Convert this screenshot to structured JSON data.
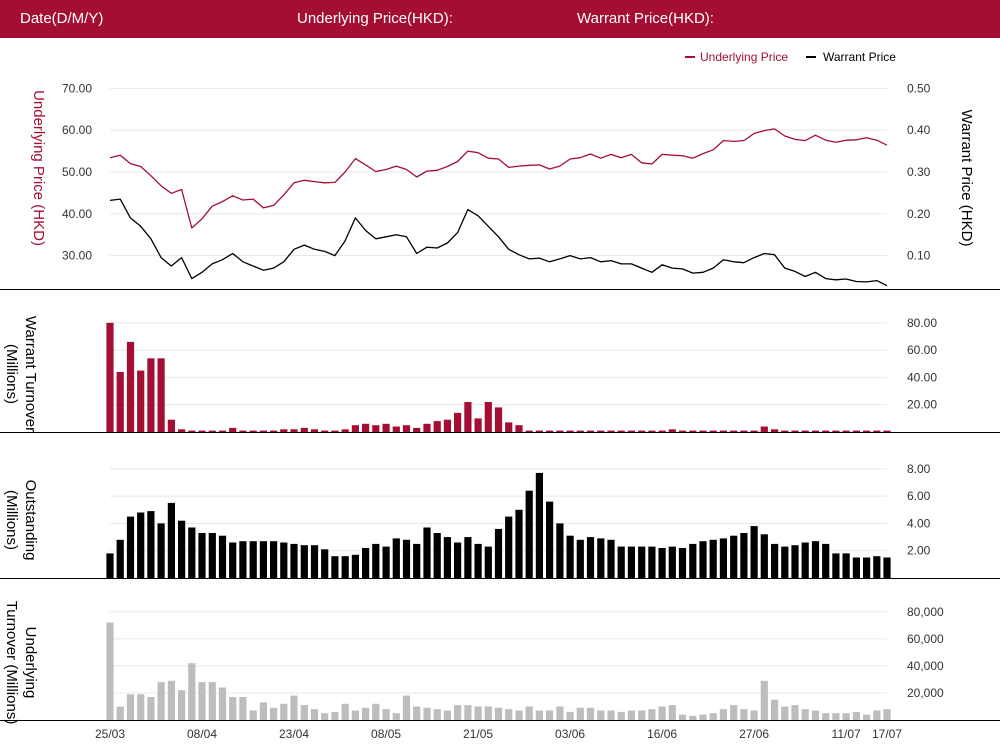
{
  "header": {
    "date_label": "Date(D/M/Y)",
    "underlying_label": "Underlying Price(HKD):",
    "warrant_label": "Warrant Price(HKD):"
  },
  "colors": {
    "header_bg": "#a50e33",
    "underlying": "#a50e33",
    "warrant": "#000000",
    "underlying_turnover": "#bdbdbd",
    "grid": "#e8e8e8"
  },
  "chart_data": [
    {
      "type": "line",
      "id": "price",
      "legend_position": "top-right",
      "y_left": {
        "label": "Underlying Price (HKD)",
        "range": [
          22,
          72
        ],
        "ticks": [
          "70.00",
          "60.00",
          "50.00",
          "40.00",
          "30.00"
        ],
        "tick_values": [
          70,
          60,
          50,
          40,
          30
        ]
      },
      "y_right": {
        "label": "Warrant Price (HKD)",
        "range": [
          0.02,
          0.52
        ],
        "ticks": [
          "0.50",
          "0.40",
          "0.30",
          "0.20",
          "0.10"
        ],
        "tick_values": [
          0.5,
          0.4,
          0.3,
          0.2,
          0.1
        ]
      },
      "grid": true,
      "series": [
        {
          "name": "Underlying Price",
          "axis": "left",
          "values": [
            53.4,
            54.0,
            52.0,
            51.3,
            49.1,
            46.7,
            44.9,
            45.8,
            36.6,
            38.8,
            41.8,
            42.9,
            44.3,
            43.3,
            43.5,
            41.4,
            42.0,
            44.5,
            47.4,
            48.0,
            47.7,
            47.4,
            47.5,
            50.0,
            53.2,
            51.7,
            50.1,
            50.6,
            51.4,
            50.6,
            48.8,
            50.2,
            50.4,
            51.3,
            52.5,
            55.0,
            54.6,
            53.3,
            53.1,
            51.1,
            51.4,
            51.6,
            51.7,
            50.7,
            51.4,
            53.1,
            53.4,
            54.3,
            53.3,
            54.2,
            53.4,
            54.2,
            52.2,
            51.9,
            54.2,
            54.0,
            53.9,
            53.3,
            54.4,
            55.3,
            57.5,
            57.3,
            57.5,
            59.2,
            59.9,
            60.3,
            58.6,
            57.8,
            57.5,
            58.8,
            57.6,
            57.1,
            57.6,
            57.7,
            58.2,
            57.6,
            56.4
          ]
        },
        {
          "name": "Warrant Price",
          "axis": "right",
          "values": [
            0.232,
            0.235,
            0.19,
            0.17,
            0.14,
            0.095,
            0.075,
            0.095,
            0.045,
            0.06,
            0.08,
            0.09,
            0.105,
            0.085,
            0.075,
            0.065,
            0.07,
            0.085,
            0.115,
            0.125,
            0.115,
            0.11,
            0.1,
            0.135,
            0.19,
            0.16,
            0.14,
            0.145,
            0.15,
            0.145,
            0.105,
            0.12,
            0.118,
            0.13,
            0.155,
            0.21,
            0.195,
            0.17,
            0.145,
            0.115,
            0.102,
            0.092,
            0.094,
            0.085,
            0.092,
            0.1,
            0.092,
            0.095,
            0.085,
            0.088,
            0.08,
            0.08,
            0.07,
            0.06,
            0.078,
            0.07,
            0.068,
            0.058,
            0.06,
            0.07,
            0.09,
            0.085,
            0.083,
            0.095,
            0.105,
            0.102,
            0.07,
            0.062,
            0.05,
            0.06,
            0.045,
            0.042,
            0.044,
            0.038,
            0.037,
            0.04,
            0.028
          ]
        }
      ]
    },
    {
      "type": "bar",
      "id": "warrant_turnover",
      "y_label_lines": [
        "Warrant  Turnover",
        "(Millions)"
      ],
      "y_range": [
        0,
        85
      ],
      "ticks": [
        "80.00",
        "60.00",
        "40.00",
        "20.00"
      ],
      "tick_values": [
        80,
        60,
        40,
        20
      ],
      "values": [
        80,
        44,
        66,
        45,
        54,
        54,
        9,
        2,
        1,
        1,
        1,
        1,
        3,
        1,
        1,
        1,
        1,
        2,
        2,
        3,
        2,
        1,
        1,
        2,
        5,
        6,
        5,
        6,
        4,
        5,
        3,
        6,
        8,
        9,
        14,
        22,
        10,
        22,
        18,
        7,
        5,
        1,
        1,
        1,
        1,
        1,
        1,
        1,
        1,
        1,
        1,
        1,
        1,
        1,
        1,
        2,
        1,
        1,
        1,
        1,
        1,
        1,
        1,
        1,
        4,
        2,
        1,
        1,
        1,
        1,
        1,
        1,
        1,
        1,
        1,
        1,
        1
      ]
    },
    {
      "type": "bar",
      "id": "outstanding",
      "y_label_lines": [
        "Outstanding",
        "(Millions)"
      ],
      "y_range": [
        0,
        8.5
      ],
      "ticks": [
        "8.00",
        "6.00",
        "4.00",
        "2.00"
      ],
      "tick_values": [
        8,
        6,
        4,
        2
      ],
      "values": [
        1.8,
        2.8,
        4.5,
        4.8,
        4.9,
        4.0,
        5.5,
        4.2,
        3.7,
        3.3,
        3.3,
        3.1,
        2.6,
        2.7,
        2.7,
        2.7,
        2.7,
        2.6,
        2.5,
        2.4,
        2.4,
        2.1,
        1.6,
        1.6,
        1.7,
        2.2,
        2.5,
        2.3,
        2.9,
        2.8,
        2.5,
        3.7,
        3.3,
        3.0,
        2.6,
        3.0,
        2.5,
        2.3,
        3.6,
        4.5,
        5.0,
        6.4,
        7.7,
        5.6,
        4.0,
        3.1,
        2.8,
        3.0,
        2.9,
        2.8,
        2.3,
        2.3,
        2.3,
        2.3,
        2.2,
        2.3,
        2.2,
        2.5,
        2.7,
        2.8,
        2.9,
        3.1,
        3.3,
        3.8,
        3.2,
        2.5,
        2.3,
        2.4,
        2.6,
        2.7,
        2.5,
        1.8,
        1.8,
        1.5,
        1.5,
        1.6,
        1.5
      ]
    },
    {
      "type": "bar",
      "id": "underlying_turnover",
      "y_label_lines": [
        "Underlying",
        "Turnover (Millions)"
      ],
      "y_range": [
        0,
        85000
      ],
      "ticks": [
        "80,000",
        "60,000",
        "40,000",
        "20,000"
      ],
      "tick_values": [
        80000,
        60000,
        40000,
        20000
      ],
      "x_ticks": [
        {
          "label": "25/03",
          "index": 0
        },
        {
          "label": "08/04",
          "index": 9
        },
        {
          "label": "23/04",
          "index": 18
        },
        {
          "label": "08/05",
          "index": 27
        },
        {
          "label": "21/05",
          "index": 36
        },
        {
          "label": "03/06",
          "index": 45
        },
        {
          "label": "16/06",
          "index": 54
        },
        {
          "label": "27/06",
          "index": 63
        },
        {
          "label": "11/07",
          "index": 72
        },
        {
          "label": "17/07",
          "index": 76
        }
      ],
      "values": [
        72000,
        10000,
        19000,
        19000,
        17000,
        28000,
        29000,
        22000,
        42000,
        28000,
        28000,
        24000,
        17000,
        17000,
        7000,
        13000,
        9000,
        12000,
        18000,
        11000,
        8000,
        5000,
        6000,
        12000,
        7000,
        9000,
        12000,
        8000,
        5000,
        18000,
        10000,
        9000,
        8000,
        7000,
        11000,
        11000,
        10000,
        10000,
        9000,
        8000,
        7000,
        10000,
        7000,
        7000,
        10000,
        6000,
        9000,
        9000,
        7000,
        7000,
        6000,
        7000,
        7000,
        8000,
        10000,
        11000,
        4000,
        3000,
        4000,
        5000,
        8000,
        11000,
        8000,
        7000,
        29000,
        15000,
        10000,
        11000,
        8000,
        7000,
        5000,
        5000,
        5000,
        6000,
        4000,
        7000,
        8000
      ]
    }
  ]
}
